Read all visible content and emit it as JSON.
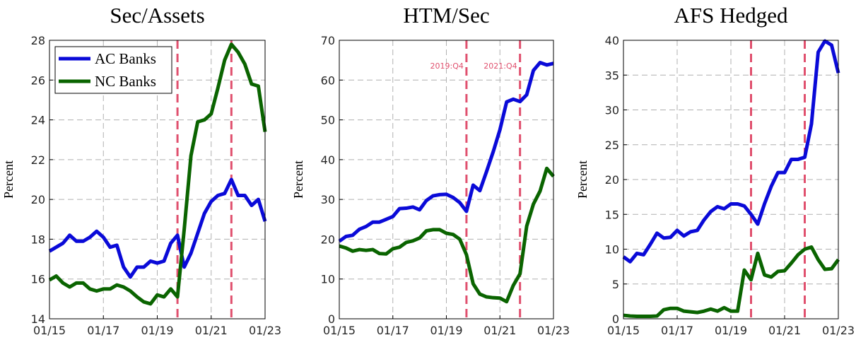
{
  "chart_data": [
    {
      "type": "line",
      "title": "Sec/Assets",
      "ylabel": "Percent",
      "x": [
        "01/15",
        "04/15",
        "07/15",
        "10/15",
        "01/16",
        "04/16",
        "07/16",
        "10/16",
        "01/17",
        "04/17",
        "07/17",
        "10/17",
        "01/18",
        "04/18",
        "07/18",
        "10/18",
        "01/19",
        "04/19",
        "07/19",
        "10/19",
        "01/20",
        "04/20",
        "07/20",
        "10/20",
        "01/21",
        "04/21",
        "07/21",
        "10/21",
        "01/22",
        "04/22",
        "07/22",
        "10/22",
        "01/23"
      ],
      "xlim": [
        "01/15",
        "01/23"
      ],
      "xticks": [
        "01/15",
        "01/17",
        "01/19",
        "01/21",
        "01/23"
      ],
      "ylim": [
        14,
        28
      ],
      "yticks": [
        14,
        16,
        18,
        20,
        22,
        24,
        26,
        28
      ],
      "grid": true,
      "legend": "upper left",
      "vlines": [
        {
          "x": "10/19",
          "color": "#e0506e"
        },
        {
          "x": "10/21",
          "color": "#e0506e"
        }
      ],
      "series": [
        {
          "name": "AC Banks",
          "color": "#0a0ad8",
          "values": [
            17.4,
            17.6,
            17.8,
            18.2,
            17.9,
            17.9,
            18.1,
            18.4,
            18.1,
            17.6,
            17.7,
            16.6,
            16.1,
            16.6,
            16.6,
            16.9,
            16.8,
            16.9,
            17.8,
            18.2,
            16.6,
            17.3,
            18.3,
            19.3,
            19.9,
            20.2,
            20.3,
            21.0,
            20.2,
            20.2,
            19.7,
            20.0,
            18.9
          ]
        },
        {
          "name": "NC Banks",
          "color": "#0a6400",
          "values": [
            15.95,
            16.15,
            15.8,
            15.6,
            15.8,
            15.8,
            15.5,
            15.4,
            15.5,
            15.5,
            15.7,
            15.6,
            15.4,
            15.1,
            14.85,
            14.75,
            15.2,
            15.1,
            15.5,
            15.1,
            18.5,
            22.2,
            23.9,
            24.0,
            24.3,
            25.6,
            27.0,
            27.8,
            27.4,
            26.8,
            25.8,
            25.7,
            23.4
          ]
        }
      ]
    },
    {
      "type": "line",
      "title": "HTM/Sec",
      "ylabel": "Percent",
      "x": [
        "01/15",
        "04/15",
        "07/15",
        "10/15",
        "01/16",
        "04/16",
        "07/16",
        "10/16",
        "01/17",
        "04/17",
        "07/17",
        "10/17",
        "01/18",
        "04/18",
        "07/18",
        "10/18",
        "01/19",
        "04/19",
        "07/19",
        "10/19",
        "01/20",
        "04/20",
        "07/20",
        "10/20",
        "01/21",
        "04/21",
        "07/21",
        "10/21",
        "01/22",
        "04/22",
        "07/22",
        "10/22",
        "01/23"
      ],
      "xlim": [
        "01/15",
        "01/23"
      ],
      "xticks": [
        "01/15",
        "01/17",
        "01/19",
        "01/21",
        "01/23"
      ],
      "ylim": [
        0,
        70
      ],
      "yticks": [
        0,
        10,
        20,
        30,
        40,
        50,
        60,
        70
      ],
      "grid": true,
      "vlines": [
        {
          "x": "10/19",
          "label": "2019:Q4",
          "color": "#e0506e"
        },
        {
          "x": "10/21",
          "label": "2021:Q4",
          "color": "#e0506e"
        }
      ],
      "series": [
        {
          "color": "#0a0ad8",
          "values": [
            19.5,
            20.7,
            21,
            22.5,
            23.2,
            24.3,
            24.3,
            25,
            25.7,
            27.7,
            27.8,
            28.1,
            27.4,
            29.7,
            30.9,
            31.2,
            31.3,
            30.5,
            29.2,
            27.0,
            33.6,
            32.2,
            37,
            42,
            47.5,
            54.5,
            55.2,
            54.6,
            56.3,
            62.4,
            64.4,
            63.8,
            64.2
          ]
        },
        {
          "color": "#0a6400",
          "values": [
            18.3,
            17.8,
            17.0,
            17.4,
            17.2,
            17.4,
            16.4,
            16.3,
            17.6,
            18.0,
            19.2,
            19.6,
            20.3,
            22.1,
            22.4,
            22.4,
            21.5,
            21.2,
            20.0,
            16.1,
            8.8,
            6.2,
            5.5,
            5.3,
            5.2,
            4.3,
            8.4,
            11.3,
            23.3,
            28.8,
            32.1,
            37.8,
            35.8
          ]
        }
      ]
    },
    {
      "type": "line",
      "title": "AFS Hedged",
      "ylabel": "Percent",
      "x": [
        "01/15",
        "04/15",
        "07/15",
        "10/15",
        "01/16",
        "04/16",
        "07/16",
        "10/16",
        "01/17",
        "04/17",
        "07/17",
        "10/17",
        "01/18",
        "04/18",
        "07/18",
        "10/18",
        "01/19",
        "04/19",
        "07/19",
        "10/19",
        "01/20",
        "04/20",
        "07/20",
        "10/20",
        "01/21",
        "04/21",
        "07/21",
        "10/21",
        "01/22",
        "04/22",
        "07/22",
        "10/22",
        "01/23"
      ],
      "xlim": [
        "01/15",
        "01/23"
      ],
      "xticks": [
        "01/15",
        "01/17",
        "01/19",
        "01/21",
        "01/23"
      ],
      "ylim": [
        0,
        40
      ],
      "yticks": [
        0,
        5,
        10,
        15,
        20,
        25,
        30,
        35,
        40
      ],
      "grid": true,
      "vlines": [
        {
          "x": "10/19",
          "color": "#e0506e"
        },
        {
          "x": "10/21",
          "color": "#e0506e"
        }
      ],
      "series": [
        {
          "color": "#0a0ad8",
          "values": [
            8.9,
            8.2,
            9.4,
            9.2,
            10.7,
            12.3,
            11.6,
            11.7,
            12.7,
            11.9,
            12.5,
            12.7,
            14.2,
            15.4,
            16.1,
            15.8,
            16.5,
            16.5,
            16.2,
            15.0,
            13.6,
            16.5,
            19.0,
            21.0,
            21.0,
            22.9,
            22.9,
            23.2,
            28.0,
            38.3,
            39.9,
            39.3,
            35.3
          ]
        },
        {
          "color": "#0a6400",
          "values": [
            0.5,
            0.4,
            0.35,
            0.35,
            0.35,
            0.4,
            1.3,
            1.5,
            1.5,
            1.1,
            1.0,
            0.9,
            1.1,
            1.4,
            1.1,
            1.6,
            1.1,
            1.1,
            7.0,
            5.6,
            9.4,
            6.3,
            6.0,
            6.8,
            6.9,
            8.0,
            9.2,
            10.0,
            10.3,
            8.5,
            7.1,
            7.2,
            8.5
          ]
        }
      ]
    }
  ]
}
